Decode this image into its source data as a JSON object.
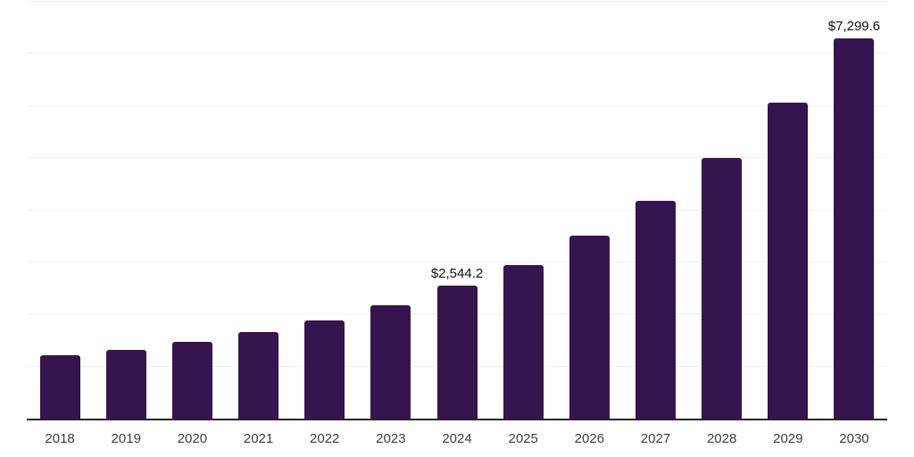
{
  "chart_data": {
    "type": "bar",
    "title": "",
    "xlabel": "",
    "ylabel": "",
    "categories": [
      "2018",
      "2019",
      "2020",
      "2021",
      "2022",
      "2023",
      "2024",
      "2025",
      "2026",
      "2027",
      "2028",
      "2029",
      "2030"
    ],
    "values": [
      1210,
      1315,
      1480,
      1660,
      1890,
      2175,
      2544.2,
      2950,
      3515,
      4180,
      5005,
      6065,
      7299.6
    ],
    "labeled_points": [
      {
        "category": "2024",
        "label": "$2,544.2"
      },
      {
        "category": "2030",
        "label": "$7,299.6"
      }
    ],
    "ylim": [
      0,
      8000
    ],
    "gridline_step": 1000,
    "grid": "horizontal-only",
    "legend": "none",
    "y_tick_labels_visible": false,
    "colors": {
      "bar": "#361450",
      "gridline": "#f0f0f0",
      "axis_line": "#262626",
      "tick_label": "#3d3d3d",
      "data_label": "#111111",
      "background": "#ffffff"
    }
  }
}
